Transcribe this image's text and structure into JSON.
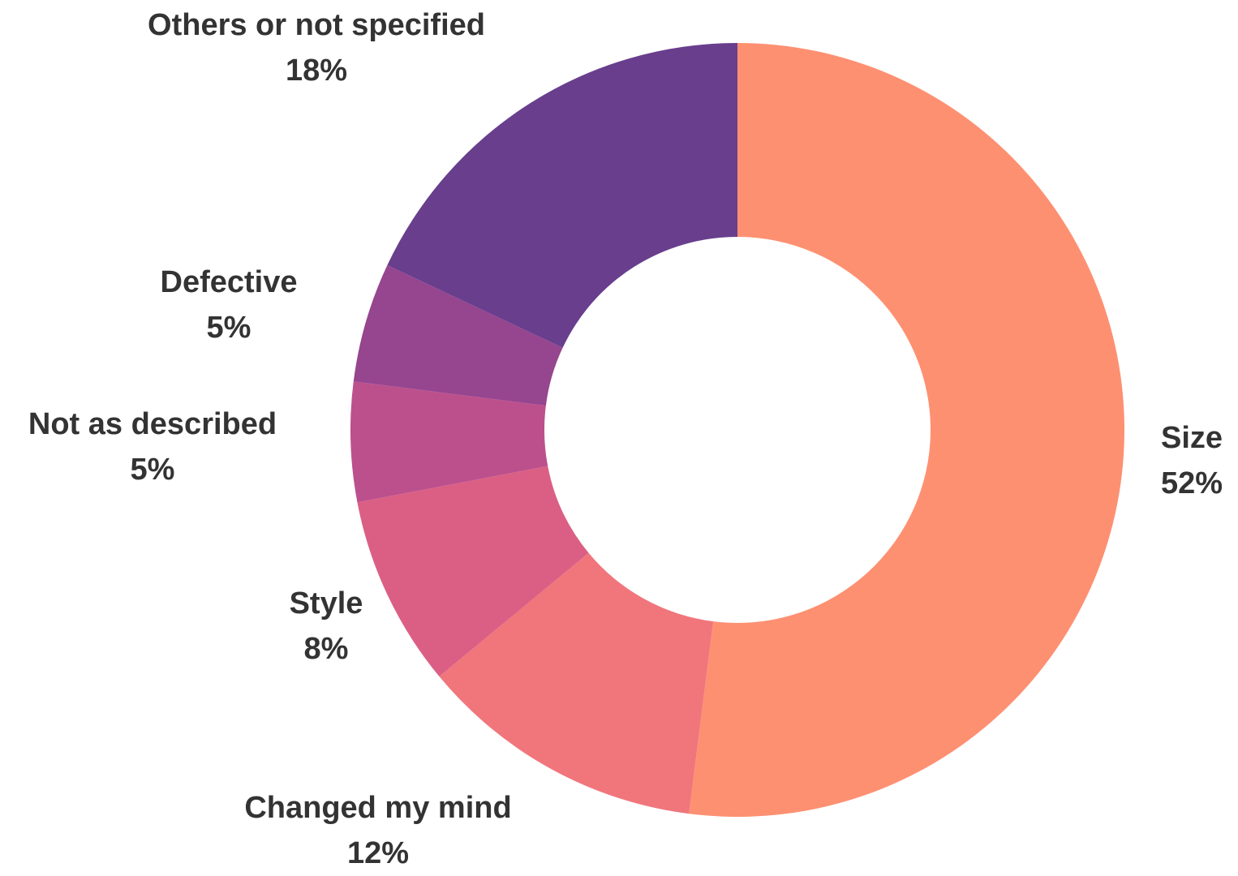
{
  "chart_data": {
    "type": "pie",
    "donut": true,
    "title": "",
    "categories": [
      "Size",
      "Changed my mind",
      "Style",
      "Not as described",
      "Defective",
      "Others or not specified"
    ],
    "values": [
      52,
      12,
      8,
      5,
      5,
      18
    ],
    "labels": [
      "52%",
      "12%",
      "8%",
      "5%",
      "5%",
      "18%"
    ],
    "colors": [
      "#fe9072",
      "#f0767c",
      "#db5f84",
      "#bc508d",
      "#96458f",
      "#683e8d"
    ],
    "start_angle": "12 o'clock",
    "direction": "clockwise",
    "legend": "none"
  }
}
